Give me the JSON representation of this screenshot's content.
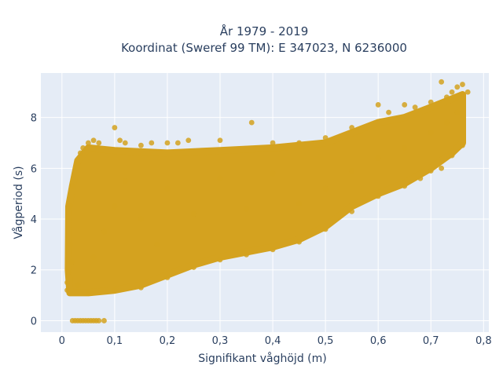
{
  "chart_data": {
    "type": "scatter",
    "title": "År 1979 - 2019",
    "subtitle": "Koordinat (Sweref 99 TM): E 347023, N 6236000",
    "xlabel": "Signifikant våghöjd (m)",
    "ylabel": "Vågperiod (s)",
    "xlim": [
      -0.04,
      0.81
    ],
    "ylim": [
      -0.45,
      9.75
    ],
    "xticks": [
      0,
      0.1,
      0.2,
      0.3,
      0.4,
      0.5,
      0.6,
      0.7,
      0.8
    ],
    "xtick_labels": [
      "0",
      "0,1",
      "0,2",
      "0,3",
      "0,4",
      "0,5",
      "0,6",
      "0,7",
      "0,8"
    ],
    "yticks": [
      0,
      2,
      4,
      6,
      8
    ],
    "ytick_labels": [
      "0",
      "2",
      "4",
      "6",
      "8"
    ],
    "grid": true,
    "background": "#e5ecf6",
    "marker_color": "#d4a21f",
    "series": [
      {
        "points": [
          [
            0.01,
            1.2
          ],
          [
            0.01,
            1.5
          ],
          [
            0.012,
            1.9
          ],
          [
            0.015,
            3.0
          ],
          [
            0.015,
            4.5
          ],
          [
            0.018,
            2.3
          ],
          [
            0.02,
            0.0
          ],
          [
            0.025,
            0.0
          ],
          [
            0.03,
            0.0
          ],
          [
            0.035,
            0.0
          ],
          [
            0.04,
            0.0
          ],
          [
            0.045,
            0.0
          ],
          [
            0.05,
            0.0
          ],
          [
            0.055,
            0.0
          ],
          [
            0.06,
            0.0
          ],
          [
            0.065,
            0.0
          ],
          [
            0.07,
            0.0
          ],
          [
            0.08,
            0.0
          ],
          [
            0.02,
            5.3
          ],
          [
            0.03,
            6.2
          ],
          [
            0.035,
            6.6
          ],
          [
            0.04,
            6.8
          ],
          [
            0.05,
            7.0
          ],
          [
            0.06,
            7.1
          ],
          [
            0.07,
            7.0
          ],
          [
            0.1,
            7.6
          ],
          [
            0.11,
            7.1
          ],
          [
            0.12,
            7.0
          ],
          [
            0.15,
            6.9
          ],
          [
            0.17,
            7.0
          ],
          [
            0.2,
            7.0
          ],
          [
            0.22,
            7.0
          ],
          [
            0.24,
            7.1
          ],
          [
            0.3,
            7.1
          ],
          [
            0.36,
            7.8
          ],
          [
            0.4,
            7.0
          ],
          [
            0.45,
            7.0
          ],
          [
            0.5,
            7.2
          ],
          [
            0.55,
            7.6
          ],
          [
            0.6,
            8.5
          ],
          [
            0.62,
            8.2
          ],
          [
            0.65,
            8.5
          ],
          [
            0.67,
            8.4
          ],
          [
            0.7,
            8.6
          ],
          [
            0.72,
            9.4
          ],
          [
            0.73,
            8.8
          ],
          [
            0.74,
            9.0
          ],
          [
            0.75,
            9.2
          ],
          [
            0.76,
            9.3
          ],
          [
            0.77,
            9.0
          ],
          [
            0.76,
            6.9
          ],
          [
            0.74,
            6.5
          ],
          [
            0.72,
            6.0
          ],
          [
            0.7,
            5.9
          ],
          [
            0.68,
            5.6
          ],
          [
            0.65,
            5.3
          ],
          [
            0.6,
            4.9
          ],
          [
            0.55,
            4.3
          ],
          [
            0.5,
            3.6
          ],
          [
            0.45,
            3.1
          ],
          [
            0.4,
            2.8
          ],
          [
            0.35,
            2.6
          ],
          [
            0.3,
            2.4
          ],
          [
            0.25,
            2.1
          ],
          [
            0.2,
            1.7
          ],
          [
            0.15,
            1.3
          ],
          [
            0.1,
            1.2
          ],
          [
            0.05,
            1.1
          ],
          [
            0.03,
            1.4
          ],
          [
            0.06,
            2.5
          ],
          [
            0.08,
            3.5
          ],
          [
            0.1,
            4.5
          ],
          [
            0.12,
            5.5
          ],
          [
            0.15,
            4.0
          ],
          [
            0.18,
            3.0
          ],
          [
            0.2,
            5.2
          ],
          [
            0.25,
            4.2
          ],
          [
            0.3,
            5.6
          ],
          [
            0.35,
            4.4
          ],
          [
            0.4,
            5.8
          ],
          [
            0.45,
            4.6
          ],
          [
            0.5,
            5.2
          ],
          [
            0.55,
            5.9
          ],
          [
            0.6,
            6.4
          ],
          [
            0.65,
            6.8
          ],
          [
            0.7,
            7.4
          ],
          [
            0.73,
            7.8
          ],
          [
            0.75,
            8.2
          ]
        ]
      }
    ]
  }
}
